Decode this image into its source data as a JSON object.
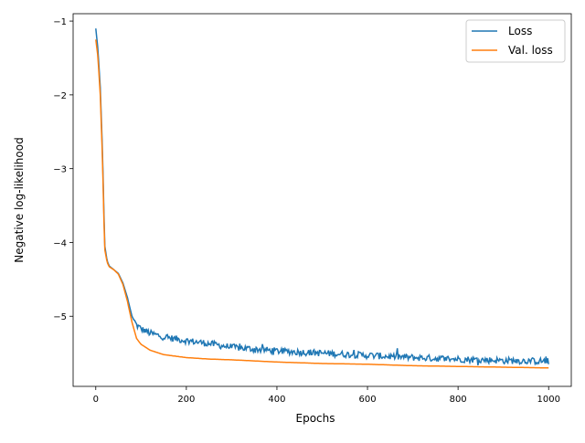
{
  "chart_data": {
    "type": "line",
    "xlabel": "Epochs",
    "ylabel": "Negative log-likelihood",
    "xlim": [
      -50,
      1050
    ],
    "ylim": [
      -5.95,
      -0.9
    ],
    "xticks": [
      0,
      200,
      400,
      600,
      800,
      1000
    ],
    "xtick_labels": [
      "0",
      "200",
      "400",
      "600",
      "800",
      "1000"
    ],
    "yticks": [
      -1,
      -2,
      -3,
      -4,
      -5
    ],
    "ytick_labels": [
      "−1",
      "−2",
      "−3",
      "−4",
      "−5"
    ],
    "legend_position": "top-right",
    "grid": false,
    "series": [
      {
        "name": "Loss",
        "color": "#1f77b4",
        "noise": true,
        "x": [
          0,
          5,
          10,
          15,
          18,
          20,
          25,
          30,
          40,
          50,
          60,
          70,
          80,
          90,
          100,
          120,
          150,
          200,
          250,
          300,
          400,
          500,
          600,
          700,
          800,
          900,
          1000
        ],
        "y": [
          -1.1,
          -1.4,
          -1.9,
          -2.8,
          -3.6,
          -4.05,
          -4.25,
          -4.32,
          -4.37,
          -4.42,
          -4.55,
          -4.75,
          -5.0,
          -5.12,
          -5.17,
          -5.23,
          -5.28,
          -5.33,
          -5.37,
          -5.42,
          -5.47,
          -5.5,
          -5.53,
          -5.56,
          -5.58,
          -5.6,
          -5.61
        ]
      },
      {
        "name": "Val. loss",
        "color": "#ff7f0e",
        "noise": false,
        "x": [
          0,
          5,
          10,
          15,
          18,
          20,
          25,
          30,
          40,
          50,
          60,
          70,
          80,
          90,
          100,
          120,
          150,
          200,
          250,
          300,
          400,
          500,
          600,
          700,
          800,
          900,
          1000
        ],
        "y": [
          -1.25,
          -1.5,
          -2.0,
          -2.9,
          -3.7,
          -4.1,
          -4.27,
          -4.33,
          -4.37,
          -4.43,
          -4.57,
          -4.8,
          -5.08,
          -5.3,
          -5.38,
          -5.46,
          -5.52,
          -5.56,
          -5.58,
          -5.59,
          -5.62,
          -5.64,
          -5.65,
          -5.67,
          -5.68,
          -5.69,
          -5.7
        ]
      }
    ]
  }
}
